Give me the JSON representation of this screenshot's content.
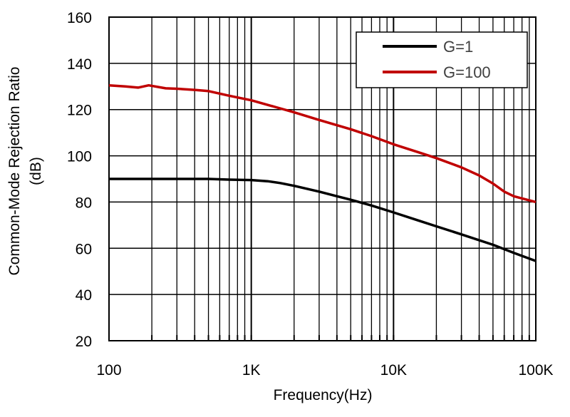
{
  "chart_data": {
    "type": "line",
    "xlabel": "Frequency(Hz)",
    "ylabel_lines": [
      "Common-Mode Rejection Ratio",
      "(dB)"
    ],
    "x_scale": "log",
    "xlim": [
      100,
      100000
    ],
    "ylim": [
      20,
      160
    ],
    "grid": true,
    "legend_position": "top-right",
    "x_ticks": [
      {
        "value": 100,
        "label": "100"
      },
      {
        "value": 1000,
        "label": "1K"
      },
      {
        "value": 10000,
        "label": "10K"
      },
      {
        "value": 100000,
        "label": "100K"
      }
    ],
    "y_ticks": [
      {
        "value": 20,
        "label": "20"
      },
      {
        "value": 40,
        "label": "40"
      },
      {
        "value": 60,
        "label": "60"
      },
      {
        "value": 80,
        "label": "80"
      },
      {
        "value": 100,
        "label": "100"
      },
      {
        "value": 120,
        "label": "120"
      },
      {
        "value": 140,
        "label": "140"
      },
      {
        "value": 160,
        "label": "160"
      }
    ],
    "series": [
      {
        "name": "G=1",
        "color": "#000000",
        "points": [
          [
            100,
            90
          ],
          [
            200,
            90
          ],
          [
            300,
            90
          ],
          [
            500,
            90
          ],
          [
            700,
            89.7
          ],
          [
            1000,
            89.5
          ],
          [
            1300,
            89
          ],
          [
            1600,
            88.2
          ],
          [
            2000,
            87
          ],
          [
            3000,
            84.5
          ],
          [
            4000,
            82.5
          ],
          [
            5000,
            81
          ],
          [
            7000,
            78.5
          ],
          [
            10000,
            75.5
          ],
          [
            15000,
            72
          ],
          [
            20000,
            69.5
          ],
          [
            30000,
            66
          ],
          [
            50000,
            61.5
          ],
          [
            70000,
            58
          ],
          [
            100000,
            54.5
          ]
        ]
      },
      {
        "name": "G=100",
        "color": "#c00000",
        "points": [
          [
            100,
            130.5
          ],
          [
            130,
            130
          ],
          [
            160,
            129.5
          ],
          [
            190,
            130.5
          ],
          [
            250,
            129.2
          ],
          [
            300,
            129
          ],
          [
            400,
            128.5
          ],
          [
            500,
            128
          ],
          [
            700,
            126
          ],
          [
            1000,
            124
          ],
          [
            1500,
            121
          ],
          [
            2000,
            118.8
          ],
          [
            3000,
            115.5
          ],
          [
            5000,
            111.5
          ],
          [
            7000,
            108.5
          ],
          [
            10000,
            105
          ],
          [
            15000,
            101.5
          ],
          [
            20000,
            99
          ],
          [
            30000,
            95
          ],
          [
            40000,
            91.5
          ],
          [
            50000,
            88
          ],
          [
            60000,
            84.5
          ],
          [
            70000,
            82.5
          ],
          [
            100000,
            80
          ]
        ]
      }
    ]
  }
}
